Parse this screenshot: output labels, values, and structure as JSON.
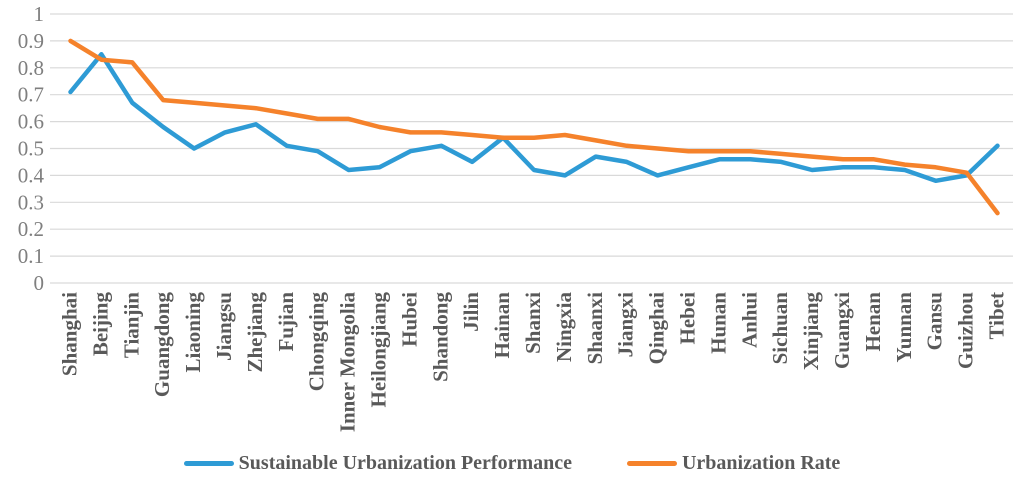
{
  "chart_data": {
    "type": "line",
    "title": "",
    "xlabel": "",
    "ylabel": "",
    "categories": [
      "Shanghai",
      "Beijing",
      "Tianjin",
      "Guangdong",
      "Liaoning",
      "Jiangsu",
      "Zhejiang",
      "Fujian",
      "Chongqing",
      "Inner Mongolia",
      "Heilongjiang",
      "Hubei",
      "Shandong",
      "Jilin",
      "Hainan",
      "Shanxi",
      "Ningxia",
      "Shaanxi",
      "Jiangxi",
      "Qinghai",
      "Hebei",
      "Hunan",
      "Anhui",
      "Sichuan",
      "Xinjiang",
      "Guangxi",
      "Henan",
      "Yunnan",
      "Gansu",
      "Guizhou",
      "Tibet"
    ],
    "series": [
      {
        "name": "Sustainable Urbanization Performance",
        "color": "#2E9BD5",
        "values": [
          0.71,
          0.85,
          0.67,
          0.58,
          0.5,
          0.56,
          0.59,
          0.51,
          0.49,
          0.42,
          0.43,
          0.49,
          0.51,
          0.45,
          0.54,
          0.42,
          0.4,
          0.47,
          0.45,
          0.4,
          0.43,
          0.46,
          0.46,
          0.45,
          0.42,
          0.43,
          0.43,
          0.42,
          0.38,
          0.4,
          0.51
        ]
      },
      {
        "name": "Urbanization Rate",
        "color": "#F5822B",
        "values": [
          0.9,
          0.83,
          0.82,
          0.68,
          0.67,
          0.66,
          0.65,
          0.63,
          0.61,
          0.61,
          0.58,
          0.56,
          0.56,
          0.55,
          0.54,
          0.54,
          0.55,
          0.53,
          0.51,
          0.5,
          0.49,
          0.49,
          0.49,
          0.48,
          0.47,
          0.46,
          0.46,
          0.44,
          0.43,
          0.41,
          0.26
        ]
      }
    ],
    "ylim": [
      0,
      1
    ],
    "ytick_step": 0.1,
    "ytick_labels": [
      "1",
      "0.9",
      "0.8",
      "0.7",
      "0.6",
      "0.5",
      "0.4",
      "0.3",
      "0.2",
      "0.1",
      "0"
    ],
    "grid": "horizontal-only",
    "legend_position": "bottom-center",
    "colors": {
      "gridline": "#D9D9D9",
      "ytick_label": "#7F7F7F",
      "xtick_label": "#595959",
      "legend_text": "#595959",
      "background": "#FFFFFF"
    }
  }
}
